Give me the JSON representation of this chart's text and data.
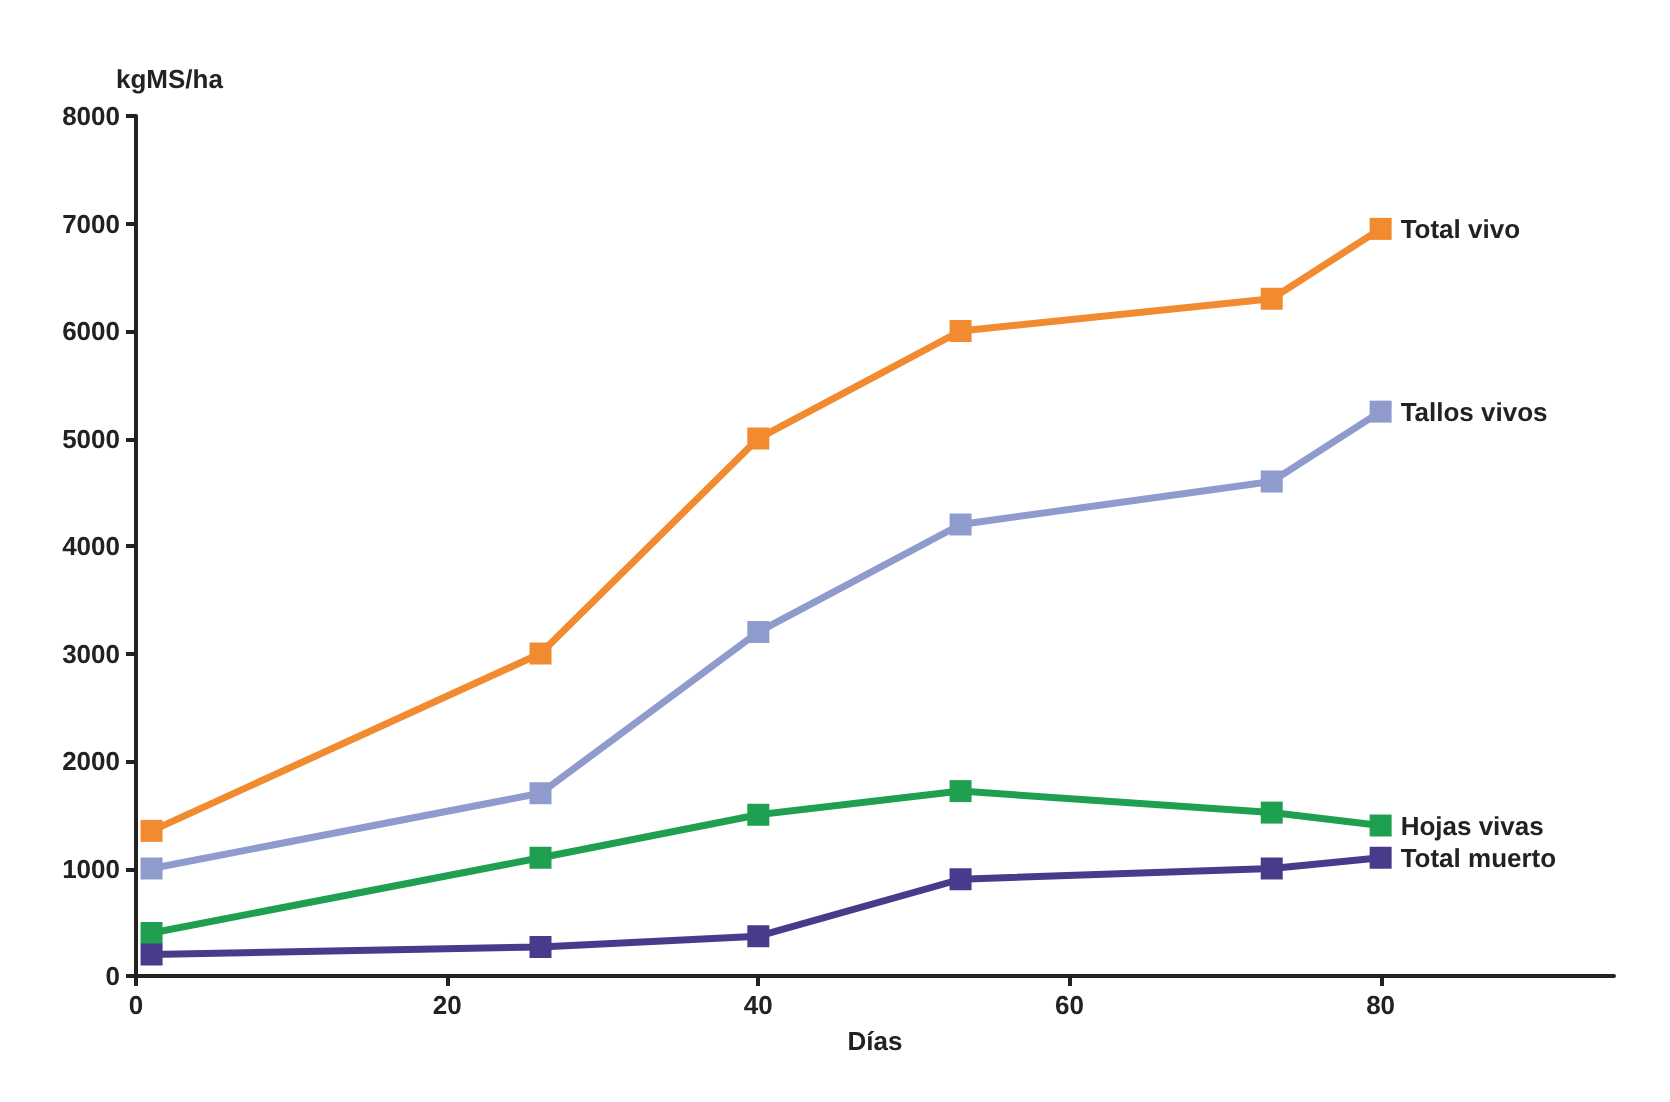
{
  "chart_data": {
    "type": "line",
    "ylabel": "kgMS/ha",
    "xlabel": "Días",
    "xlim": [
      0,
      95
    ],
    "xticks": [
      0,
      20,
      40,
      60,
      80
    ],
    "ylim": [
      0,
      8000
    ],
    "yticks": [
      0,
      1000,
      2000,
      3000,
      4000,
      5000,
      6000,
      7000,
      8000
    ],
    "grid": false,
    "legend": false,
    "marker": "square",
    "line_style": "solid",
    "x": [
      1,
      26,
      40,
      53,
      73,
      80
    ],
    "series": [
      {
        "name": "Total vivo",
        "color": "#f28a30",
        "values": [
          1350,
          3000,
          5000,
          6000,
          6300,
          6950
        ]
      },
      {
        "name": "Tallos vivos",
        "color": "#8e9bcc",
        "values": [
          1000,
          1700,
          3200,
          4200,
          4600,
          5250
        ]
      },
      {
        "name": "Hojas vivas",
        "color": "#1fa050",
        "values": [
          400,
          1100,
          1500,
          1720,
          1520,
          1400
        ]
      },
      {
        "name": "Total muerto",
        "color": "#4a3a8c",
        "values": [
          200,
          270,
          370,
          900,
          1000,
          1100
        ]
      }
    ]
  }
}
